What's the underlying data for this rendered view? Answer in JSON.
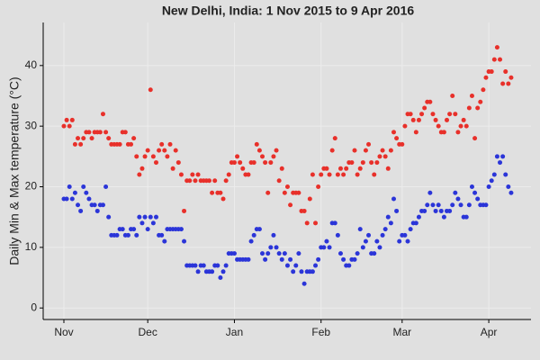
{
  "chart_data": {
    "type": "scatter",
    "title": "New Delhi, India: 1 Nov 2015 to 9 Apr 2016",
    "y_label": "Daily Min & Max temperature (°C)",
    "x": [
      0,
      1,
      2,
      3,
      4,
      5,
      6,
      7,
      8,
      9,
      10,
      11,
      12,
      13,
      14,
      15,
      16,
      17,
      18,
      19,
      20,
      21,
      22,
      23,
      24,
      25,
      26,
      27,
      28,
      29,
      30,
      31,
      32,
      33,
      34,
      35,
      36,
      37,
      38,
      39,
      40,
      41,
      42,
      43,
      44,
      45,
      46,
      47,
      48,
      49,
      50,
      51,
      52,
      53,
      54,
      55,
      56,
      57,
      58,
      59,
      60,
      61,
      62,
      63,
      64,
      65,
      66,
      67,
      68,
      69,
      70,
      71,
      72,
      73,
      74,
      75,
      76,
      77,
      78,
      79,
      80,
      81,
      82,
      83,
      84,
      85,
      86,
      87,
      88,
      89,
      90,
      91,
      92,
      93,
      94,
      95,
      96,
      97,
      98,
      99,
      100,
      101,
      102,
      103,
      104,
      105,
      106,
      107,
      108,
      109,
      110,
      111,
      112,
      113,
      114,
      115,
      116,
      117,
      118,
      119,
      120,
      121,
      122,
      123,
      124,
      125,
      126,
      127,
      128,
      129,
      130,
      131,
      132,
      133,
      134,
      135,
      136,
      137,
      138,
      139,
      140,
      141,
      142,
      143,
      144,
      145,
      146,
      147,
      148,
      149,
      150,
      151,
      152,
      153,
      154,
      155,
      156,
      157,
      158,
      159,
      160
    ],
    "series": [
      {
        "name": "Max",
        "color": "#e8302a",
        "values": [
          30,
          31,
          30,
          31,
          27,
          28,
          27,
          28,
          29,
          29,
          28,
          29,
          29,
          29,
          32,
          29,
          28,
          27,
          27,
          27,
          27,
          29,
          29,
          27,
          27,
          28,
          25,
          22,
          23,
          25,
          26,
          36,
          25,
          24,
          26,
          27,
          26,
          25,
          27,
          23,
          26,
          24,
          22,
          16,
          21,
          21,
          22,
          21,
          22,
          21,
          21,
          21,
          21,
          19,
          21,
          19,
          19,
          18,
          21,
          22,
          24,
          24,
          25,
          24,
          23,
          22,
          22,
          24,
          24,
          27,
          26,
          25,
          24,
          19,
          24,
          25,
          26,
          21,
          23,
          19,
          20,
          17,
          19,
          19,
          19,
          16,
          16,
          14,
          18,
          22,
          14,
          20,
          22,
          23,
          23,
          22,
          26,
          28,
          22,
          23,
          22,
          23,
          24,
          24,
          26,
          22,
          23,
          24,
          26,
          27,
          24,
          22,
          24,
          25,
          26,
          25,
          23,
          26,
          29,
          28,
          27,
          27,
          30,
          32,
          32,
          31,
          29,
          31,
          32,
          33,
          34,
          34,
          32,
          31,
          30,
          29,
          29,
          31,
          32,
          35,
          32,
          29,
          30,
          31,
          30,
          33,
          35,
          28,
          33,
          34,
          36,
          38,
          39,
          39,
          41,
          43,
          41,
          37,
          39,
          37,
          38
        ]
      },
      {
        "name": "Min",
        "color": "#2b35d8",
        "values": [
          18,
          18,
          20,
          18,
          19,
          17,
          16,
          20,
          19,
          18,
          17,
          17,
          16,
          17,
          17,
          20,
          15,
          12,
          12,
          12,
          13,
          13,
          12,
          12,
          13,
          13,
          12,
          15,
          14,
          15,
          13,
          15,
          14,
          15,
          12,
          12,
          11,
          13,
          13,
          13,
          13,
          13,
          13,
          11,
          7,
          7,
          7,
          7,
          6,
          7,
          7,
          6,
          6,
          6,
          7,
          7,
          5,
          6,
          7,
          9,
          9,
          9,
          8,
          8,
          8,
          8,
          8,
          11,
          12,
          13,
          13,
          9,
          8,
          9,
          10,
          12,
          10,
          9,
          8,
          9,
          7,
          8,
          6,
          7,
          9,
          6,
          4,
          6,
          6,
          6,
          7,
          8,
          10,
          10,
          11,
          10,
          14,
          14,
          12,
          9,
          8,
          7,
          7,
          8,
          8,
          9,
          13,
          10,
          11,
          12,
          9,
          9,
          11,
          10,
          12,
          13,
          15,
          14,
          18,
          16,
          11,
          12,
          12,
          11,
          13,
          14,
          14,
          15,
          16,
          16,
          17,
          19,
          17,
          16,
          17,
          16,
          15,
          16,
          16,
          17,
          19,
          18,
          17,
          15,
          15,
          17,
          20,
          19,
          18,
          17,
          17,
          17,
          20,
          21,
          22,
          25,
          24,
          25,
          22,
          20,
          19
        ]
      }
    ],
    "xlim": [
      -7.4,
      167.1
    ],
    "xticks": [
      {
        "value": 0,
        "label": "Nov"
      },
      {
        "value": 30,
        "label": "Dec"
      },
      {
        "value": 61,
        "label": "Jan"
      },
      {
        "value": 92,
        "label": "Feb"
      },
      {
        "value": 121,
        "label": "Mar"
      },
      {
        "value": 152,
        "label": "Apr"
      }
    ],
    "ylim": [
      -1.9,
      47.1
    ],
    "yticks": [
      0,
      10,
      20,
      30,
      40
    ],
    "grid": true
  }
}
